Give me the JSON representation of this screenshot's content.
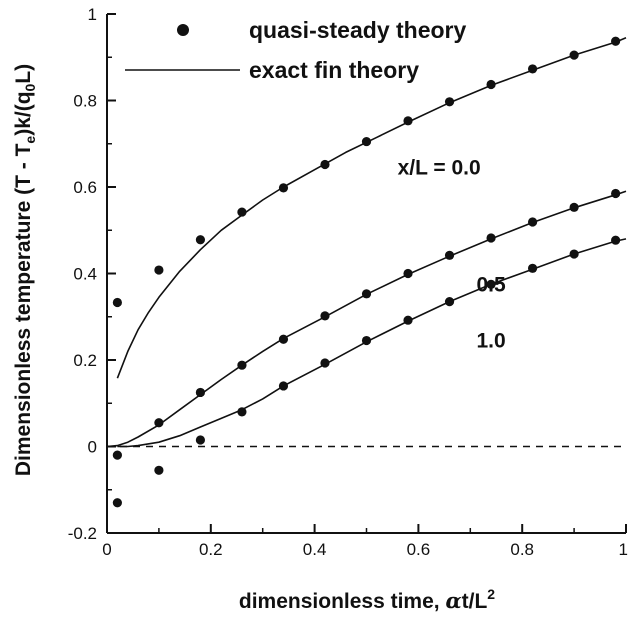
{
  "chart_data": {
    "type": "line",
    "xlabel": "dimensionless time, αt/L²",
    "xlabel_parts": {
      "main": "dimensionless time, ",
      "greek": "α",
      "rest": "t/L",
      "sup": "2"
    },
    "ylabel": "Dimensionless temperature (T - Tₑ)k/(q₀L)",
    "ylabel_parts": {
      "p1": "Dimensionless temperature (T - T",
      "sub1": "e",
      "p2": ")k/(q",
      "sub2": "0",
      "p3": "L)"
    },
    "xlim": [
      0,
      1
    ],
    "ylim": [
      -0.2,
      1
    ],
    "xticks": [
      0,
      0.2,
      0.4,
      0.6,
      0.8,
      1
    ],
    "xtick_labels": [
      "0",
      "0.2",
      "0.4",
      "0.6",
      "0.8",
      "1"
    ],
    "yticks": [
      -0.2,
      0,
      0.2,
      0.4,
      0.6,
      0.8,
      1
    ],
    "ytick_labels": [
      "-0.2",
      "0",
      "0.2",
      "0.4",
      "0.6",
      "0.8",
      "1"
    ],
    "grid": false,
    "legend": {
      "position": "top-left",
      "entries": [
        {
          "label": "quasi-steady theory",
          "marker": "dot"
        },
        {
          "label": "exact fin theory",
          "marker": "line"
        }
      ]
    },
    "reference_line": {
      "y": 0,
      "style": "dashed"
    },
    "series": [
      {
        "label": "x/L = 0.0",
        "exact": [
          [
            0.02,
            0.158
          ],
          [
            0.04,
            0.22
          ],
          [
            0.06,
            0.27
          ],
          [
            0.08,
            0.31
          ],
          [
            0.1,
            0.345
          ],
          [
            0.14,
            0.405
          ],
          [
            0.18,
            0.455
          ],
          [
            0.22,
            0.5
          ],
          [
            0.26,
            0.535
          ],
          [
            0.3,
            0.57
          ],
          [
            0.34,
            0.6
          ],
          [
            0.4,
            0.64
          ],
          [
            0.46,
            0.68
          ],
          [
            0.52,
            0.715
          ],
          [
            0.58,
            0.75
          ],
          [
            0.66,
            0.795
          ],
          [
            0.74,
            0.835
          ],
          [
            0.82,
            0.87
          ],
          [
            0.9,
            0.905
          ],
          [
            0.98,
            0.935
          ],
          [
            1.0,
            0.945
          ]
        ],
        "quasi": [
          [
            0.02,
            0.333
          ],
          [
            0.1,
            0.408
          ],
          [
            0.18,
            0.478
          ],
          [
            0.26,
            0.542
          ],
          [
            0.34,
            0.598
          ],
          [
            0.42,
            0.652
          ],
          [
            0.5,
            0.705
          ],
          [
            0.58,
            0.753
          ],
          [
            0.66,
            0.797
          ],
          [
            0.74,
            0.837
          ],
          [
            0.82,
            0.873
          ],
          [
            0.9,
            0.905
          ],
          [
            0.98,
            0.937
          ]
        ]
      },
      {
        "label": "0.5",
        "exact": [
          [
            0.0,
            0.0
          ],
          [
            0.02,
            0.002
          ],
          [
            0.04,
            0.01
          ],
          [
            0.06,
            0.022
          ],
          [
            0.1,
            0.05
          ],
          [
            0.14,
            0.085
          ],
          [
            0.18,
            0.12
          ],
          [
            0.22,
            0.155
          ],
          [
            0.26,
            0.188
          ],
          [
            0.3,
            0.22
          ],
          [
            0.34,
            0.25
          ],
          [
            0.42,
            0.3
          ],
          [
            0.5,
            0.352
          ],
          [
            0.58,
            0.398
          ],
          [
            0.66,
            0.44
          ],
          [
            0.74,
            0.48
          ],
          [
            0.82,
            0.518
          ],
          [
            0.9,
            0.552
          ],
          [
            0.98,
            0.582
          ],
          [
            1.0,
            0.59
          ]
        ],
        "quasi": [
          [
            0.02,
            -0.02
          ],
          [
            0.1,
            0.055
          ],
          [
            0.18,
            0.125
          ],
          [
            0.26,
            0.188
          ],
          [
            0.34,
            0.248
          ],
          [
            0.42,
            0.302
          ],
          [
            0.5,
            0.353
          ],
          [
            0.58,
            0.4
          ],
          [
            0.66,
            0.442
          ],
          [
            0.74,
            0.482
          ],
          [
            0.82,
            0.519
          ],
          [
            0.9,
            0.553
          ],
          [
            0.98,
            0.585
          ]
        ]
      },
      {
        "label": "1.0",
        "exact": [
          [
            0.02,
            0.0
          ],
          [
            0.04,
            0.0
          ],
          [
            0.06,
            0.002
          ],
          [
            0.1,
            0.01
          ],
          [
            0.14,
            0.025
          ],
          [
            0.18,
            0.045
          ],
          [
            0.22,
            0.065
          ],
          [
            0.26,
            0.085
          ],
          [
            0.3,
            0.11
          ],
          [
            0.34,
            0.14
          ],
          [
            0.42,
            0.19
          ],
          [
            0.5,
            0.242
          ],
          [
            0.58,
            0.29
          ],
          [
            0.66,
            0.335
          ],
          [
            0.74,
            0.375
          ],
          [
            0.82,
            0.41
          ],
          [
            0.9,
            0.445
          ],
          [
            0.98,
            0.475
          ],
          [
            1.0,
            0.48
          ]
        ],
        "quasi": [
          [
            0.02,
            -0.13
          ],
          [
            0.1,
            -0.055
          ],
          [
            0.18,
            0.015
          ],
          [
            0.26,
            0.08
          ],
          [
            0.34,
            0.14
          ],
          [
            0.42,
            0.193
          ],
          [
            0.5,
            0.245
          ],
          [
            0.58,
            0.292
          ],
          [
            0.66,
            0.335
          ],
          [
            0.74,
            0.375
          ],
          [
            0.82,
            0.412
          ],
          [
            0.9,
            0.445
          ],
          [
            0.98,
            0.477
          ]
        ]
      }
    ],
    "curve_labels": [
      {
        "text": "x/L = 0.0",
        "x": 0.64,
        "y": 0.645
      },
      {
        "text": "0.5",
        "x": 0.74,
        "y": 0.375
      },
      {
        "text": "1.0",
        "x": 0.74,
        "y": 0.245
      }
    ]
  }
}
